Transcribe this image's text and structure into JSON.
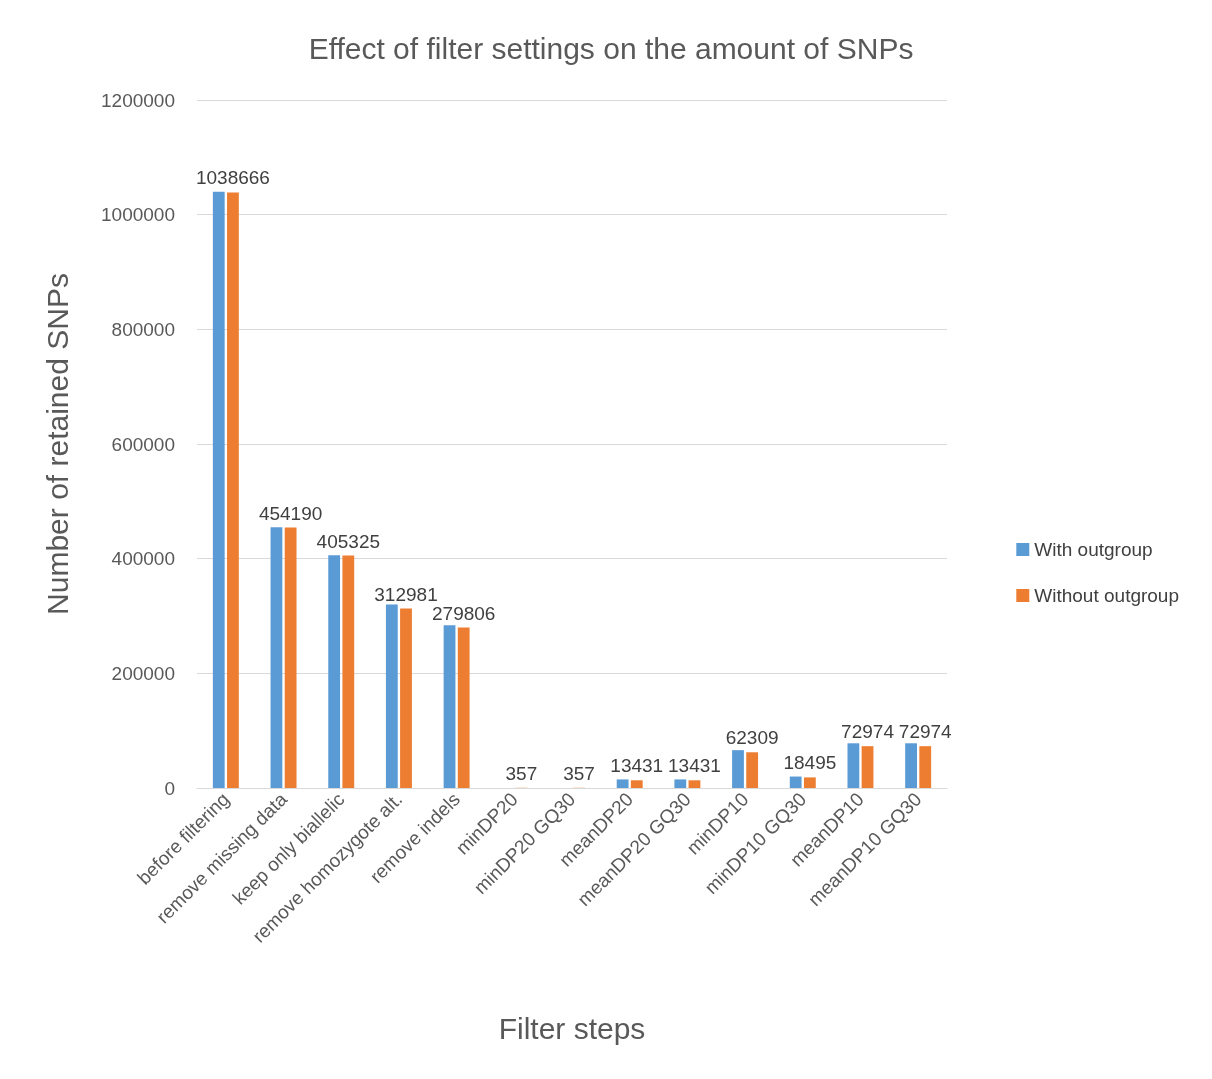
{
  "chart_data": {
    "type": "bar",
    "title": "Effect of filter settings on the amount of SNPs",
    "xlabel": "Filter steps",
    "ylabel": "Number of retained SNPs",
    "categories": [
      "before filtering",
      "remove missing data",
      "keep only biallelic",
      "remove homozygote alt.",
      "remove indels",
      "minDP20",
      "minDP20 GQ30",
      "meanDP20",
      "meanDP20 GQ30",
      "minDP10",
      "minDP10 GQ30",
      "meanDP10",
      "meanDP10 GQ30"
    ],
    "series": [
      {
        "name": "With outgroup",
        "color": "#5b9bd5",
        "values": [
          1040000,
          455000,
          406000,
          320000,
          284000,
          0,
          0,
          15000,
          15000,
          66000,
          20000,
          78000,
          78000
        ]
      },
      {
        "name": "Without outgroup",
        "color": "#ed7d31",
        "values": [
          1038666,
          454190,
          405325,
          312981,
          279806,
          357,
          357,
          13431,
          13431,
          62309,
          18495,
          72974,
          72974
        ],
        "value_labels": [
          "1038666",
          "454190",
          "405325",
          "312981",
          "279806",
          "357",
          "357",
          "13431",
          "13431",
          "62309",
          "18495",
          "72974",
          "72974"
        ]
      }
    ],
    "ylim": [
      0,
      1200000
    ],
    "yticks": [
      0,
      200000,
      400000,
      600000,
      800000,
      1000000,
      1200000
    ],
    "grid": "y",
    "legend": "right"
  }
}
